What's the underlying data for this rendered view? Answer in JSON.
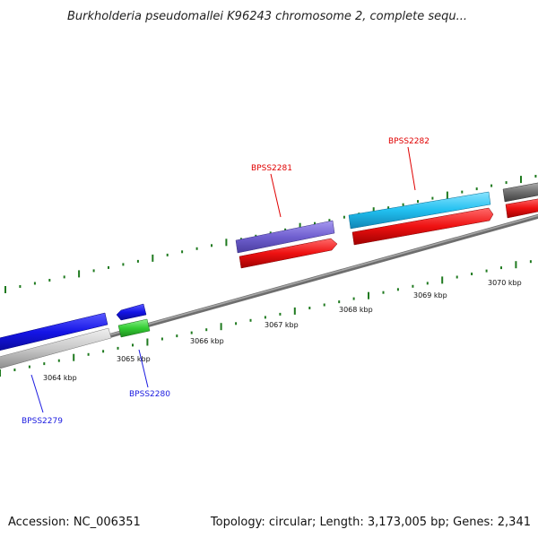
{
  "title": "Burkholderia pseudomallei K96243 chromosome 2, complete sequ...",
  "footer": {
    "accession": "Accession: NC_006351",
    "stats": "Topology: circular; Length: 3,173,005 bp; Genes: 2,341"
  },
  "ruler": {
    "labels": [
      "3064 kbp",
      "3065 kbp",
      "3066 kbp",
      "3067 kbp",
      "3068 kbp",
      "3069 kbp",
      "3070 kbp"
    ]
  },
  "genes": [
    {
      "name": "BPSS2279",
      "color": "#1a1ae0"
    },
    {
      "name": "BPSS2280",
      "color": "#1a1ae0"
    },
    {
      "name": "BPSS2281",
      "color": "#e00000"
    },
    {
      "name": "BPSS2282",
      "color": "#e00000"
    }
  ],
  "colors": {
    "backbone": "#808080",
    "tick": "#1f7a1f",
    "blue_feature": "#1414e6",
    "green_feature": "#33cc33",
    "purple_feature": "#7060d0",
    "cyan_feature": "#22c0f0",
    "red_feature": "#ee1111",
    "gray_feature": "#bdbdbd",
    "dark_feature": "#707070"
  }
}
